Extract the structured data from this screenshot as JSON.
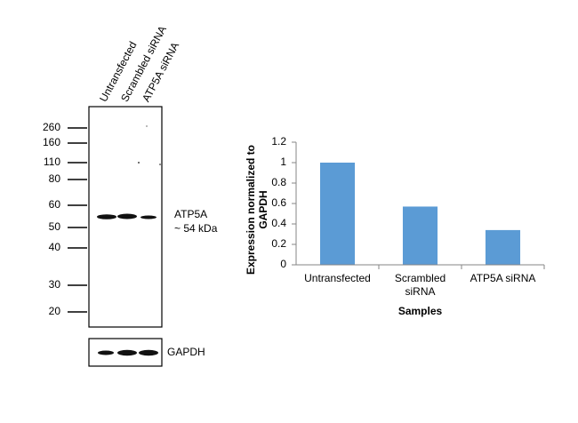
{
  "blot": {
    "lanes": [
      "Untransfected",
      "Scrambled siRNA",
      "ATP5A siRNA"
    ],
    "markers": [
      "260",
      "160",
      "110",
      "80",
      "60",
      "50",
      "40",
      "30",
      "20"
    ],
    "band_label": "ATP5A",
    "band_size": "~ 54 kDa",
    "loading_control": "GAPDH"
  },
  "chart_data": {
    "type": "bar",
    "xlabel": "Samples",
    "ylabel": "Expression  normalized to GAPDH",
    "categories": [
      "Untransfected",
      "Scrambled siRNA",
      "ATP5A siRNA"
    ],
    "values": [
      1,
      0.57,
      0.34
    ],
    "color": "#5b9bd5",
    "ylim": [
      0,
      1.2
    ],
    "yticks": [
      0,
      0.2,
      0.4,
      0.6,
      0.8,
      1,
      1.2
    ],
    "grid": false
  }
}
